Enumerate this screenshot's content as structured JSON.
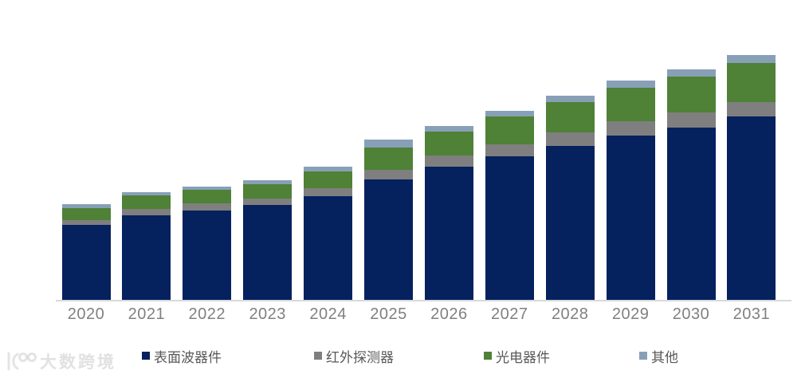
{
  "watermark": {
    "text": "大数跨境",
    "logo_icon": "dashu-logo"
  },
  "axis": {
    "line_color": "#D9D9D9",
    "tick_label_color": "#808080"
  },
  "legend": {
    "position": "bottom",
    "text_color": "#595959"
  },
  "chart_data": {
    "type": "bar",
    "subtype": "stacked-vertical",
    "title": "",
    "xlabel": "",
    "ylabel": "",
    "value_axis_visible": false,
    "units": "relative height (no value axis shown in image)",
    "ylim": [
      0,
      320
    ],
    "grid": false,
    "legend_position": "bottom",
    "categories": [
      "2020",
      "2021",
      "2022",
      "2023",
      "2024",
      "2025",
      "2026",
      "2027",
      "2028",
      "2029",
      "2030",
      "2031"
    ],
    "series": [
      {
        "name": "表面波器件",
        "color": "#05215E",
        "values": [
          94,
          106,
          112,
          119,
          130.5,
          151,
          167.5,
          180.5,
          193.5,
          206,
          216,
          230
        ]
      },
      {
        "name": "红外探测器",
        "color": "#7F7F7F",
        "values": [
          6.5,
          8.5,
          9,
          8.5,
          10,
          12.5,
          14,
          15,
          17,
          18,
          19,
          18.5
        ]
      },
      {
        "name": "光电器件",
        "color": "#4F8136",
        "values": [
          15,
          16.5,
          17,
          18,
          21,
          28,
          30,
          35,
          37.5,
          42,
          45,
          49
        ]
      },
      {
        "name": "其他",
        "color": "#87A0B8",
        "values": [
          4.5,
          4.5,
          4.5,
          4.5,
          5.5,
          10,
          7,
          7,
          8.5,
          9,
          9.5,
          9.5
        ]
      }
    ]
  }
}
